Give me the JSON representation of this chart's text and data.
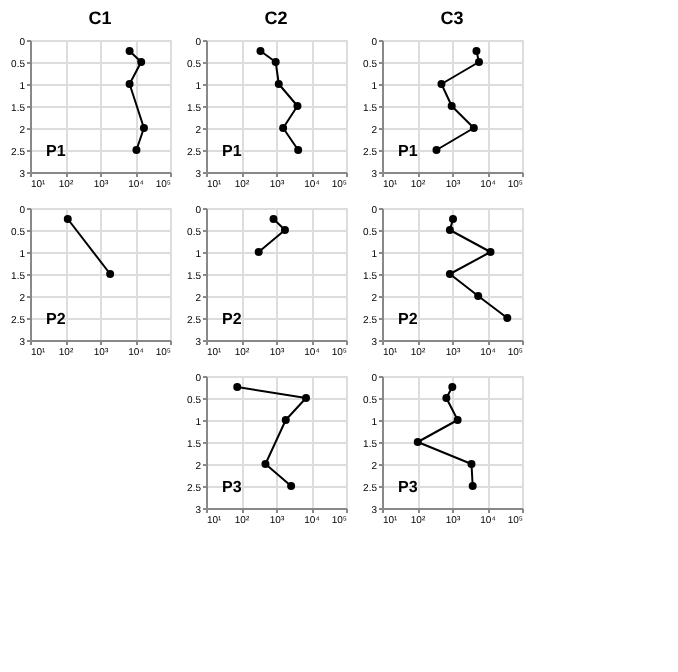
{
  "chart_data": [
    {
      "type": "line",
      "title": "C1",
      "annotations": [
        "P1"
      ],
      "series": [
        {
          "color": "#000000",
          "x": [
            7000,
            15000,
            7000,
            18000,
            11000
          ],
          "values": [
            0.25,
            0.5,
            1,
            2,
            2.5
          ]
        }
      ],
      "xlim": [
        10,
        100000
      ],
      "xticks": [
        {
          "value": 10,
          "label": "10¹"
        },
        {
          "value": 100,
          "label": "10²"
        },
        {
          "value": 1000,
          "label": "10³"
        },
        {
          "value": 10000,
          "label": "10⁴"
        },
        {
          "value": 100000,
          "label": "10⁵"
        }
      ],
      "ylim": [
        3,
        0
      ],
      "yticks": [
        0,
        0.5,
        1,
        1.5,
        2,
        2.5,
        3
      ],
      "log": "x",
      "grid": true,
      "marker": "circle"
    },
    {
      "type": "line",
      "title": "C2",
      "annotations": [
        "P1"
      ],
      "series": [
        {
          "color": "#000000",
          "x": [
            360,
            980,
            1200,
            4100,
            1600,
            4300
          ],
          "values": [
            0.25,
            0.5,
            1,
            1.5,
            2,
            2.5
          ]
        }
      ],
      "xlim": [
        10,
        100000
      ],
      "xticks": [
        {
          "value": 10,
          "label": "10¹"
        },
        {
          "value": 100,
          "label": "10²"
        },
        {
          "value": 1000,
          "label": "10³"
        },
        {
          "value": 10000,
          "label": "10⁴"
        },
        {
          "value": 100000,
          "label": "10⁵"
        }
      ],
      "ylim": [
        3,
        0
      ],
      "yticks": [
        0,
        0.5,
        1,
        1.5,
        2,
        2.5,
        3
      ],
      "log": "x",
      "grid": true,
      "marker": "circle"
    },
    {
      "type": "line",
      "title": "C3",
      "annotations": [
        "P1"
      ],
      "series": [
        {
          "color": "#000000",
          "x": [
            5000,
            5900,
            500,
            980,
            4200,
            360
          ],
          "values": [
            0.25,
            0.5,
            1,
            1.5,
            2,
            2.5
          ]
        }
      ],
      "xlim": [
        10,
        100000
      ],
      "xticks": [
        {
          "value": 10,
          "label": "10¹"
        },
        {
          "value": 100,
          "label": "10²"
        },
        {
          "value": 1000,
          "label": "10³"
        },
        {
          "value": 10000,
          "label": "10⁴"
        },
        {
          "value": 100000,
          "label": "10⁵"
        }
      ],
      "ylim": [
        3,
        0
      ],
      "yticks": [
        0,
        0.5,
        1,
        1.5,
        2,
        2.5,
        3
      ],
      "log": "x",
      "grid": true,
      "marker": "circle"
    },
    {
      "type": "line",
      "annotations": [
        "P2"
      ],
      "series": [
        {
          "color": "#000000",
          "x": [
            120,
            1950
          ],
          "values": [
            0.25,
            1.5
          ]
        }
      ],
      "xlim": [
        10,
        100000
      ],
      "xticks": [
        {
          "value": 10,
          "label": "10¹"
        },
        {
          "value": 100,
          "label": "10²"
        },
        {
          "value": 1000,
          "label": "10³"
        },
        {
          "value": 10000,
          "label": "10⁴"
        },
        {
          "value": 100000,
          "label": "10⁵"
        }
      ],
      "ylim": [
        3,
        0
      ],
      "yticks": [
        0,
        0.5,
        1,
        1.5,
        2,
        2.5,
        3
      ],
      "log": "x",
      "grid": true,
      "marker": "circle"
    },
    {
      "type": "line",
      "annotations": [
        "P2"
      ],
      "series": [
        {
          "color": "#000000",
          "x": [
            850,
            1800,
            320
          ],
          "values": [
            0.25,
            0.5,
            1
          ]
        }
      ],
      "xlim": [
        10,
        100000
      ],
      "xticks": [
        {
          "value": 10,
          "label": "10¹"
        },
        {
          "value": 100,
          "label": "10²"
        },
        {
          "value": 1000,
          "label": "10³"
        },
        {
          "value": 10000,
          "label": "10⁴"
        },
        {
          "value": 100000,
          "label": "10⁵"
        }
      ],
      "ylim": [
        3,
        0
      ],
      "yticks": [
        0,
        0.5,
        1,
        1.5,
        2,
        2.5,
        3
      ],
      "log": "x",
      "grid": true,
      "marker": "circle"
    },
    {
      "type": "line",
      "annotations": [
        "P2"
      ],
      "series": [
        {
          "color": "#000000",
          "x": [
            1070,
            870,
            12600,
            870,
            5600,
            38000
          ],
          "values": [
            0.25,
            0.5,
            1,
            1.5,
            2,
            2.5
          ]
        }
      ],
      "xlim": [
        10,
        100000
      ],
      "xticks": [
        {
          "value": 10,
          "label": "10¹"
        },
        {
          "value": 100,
          "label": "10²"
        },
        {
          "value": 1000,
          "label": "10³"
        },
        {
          "value": 10000,
          "label": "10⁴"
        },
        {
          "value": 100000,
          "label": "10⁵"
        }
      ],
      "ylim": [
        3,
        0
      ],
      "yticks": [
        0,
        0.5,
        1,
        1.5,
        2,
        2.5,
        3
      ],
      "log": "x",
      "grid": true,
      "marker": "circle"
    },
    {
      "type": "line",
      "annotations": [
        "P3"
      ],
      "series": [
        {
          "color": "#000000",
          "x": [
            78,
            7200,
            1900,
            500,
            2700
          ],
          "values": [
            0.25,
            0.5,
            1,
            2,
            2.5
          ]
        }
      ],
      "xlim": [
        10,
        100000
      ],
      "xticks": [
        {
          "value": 10,
          "label": "10¹"
        },
        {
          "value": 100,
          "label": "10²"
        },
        {
          "value": 1000,
          "label": "10³"
        },
        {
          "value": 10000,
          "label": "10⁴"
        },
        {
          "value": 100000,
          "label": "10⁵"
        }
      ],
      "ylim": [
        3,
        0
      ],
      "yticks": [
        0,
        0.5,
        1,
        1.5,
        2,
        2.5,
        3
      ],
      "log": "x",
      "grid": true,
      "marker": "circle"
    },
    {
      "type": "line",
      "annotations": [
        "P3"
      ],
      "series": [
        {
          "color": "#000000",
          "x": [
            1020,
            690,
            1450,
            105,
            3600,
            3900
          ],
          "values": [
            0.25,
            0.5,
            1,
            1.5,
            2,
            2.5
          ]
        }
      ],
      "xlim": [
        10,
        100000
      ],
      "xticks": [
        {
          "value": 10,
          "label": "10¹"
        },
        {
          "value": 100,
          "label": "10²"
        },
        {
          "value": 1000,
          "label": "10³"
        },
        {
          "value": 10000,
          "label": "10⁴"
        },
        {
          "value": 100000,
          "label": "10⁵"
        }
      ],
      "ylim": [
        3,
        0
      ],
      "yticks": [
        0,
        0.5,
        1,
        1.5,
        2,
        2.5,
        3
      ],
      "log": "x",
      "grid": true,
      "marker": "circle"
    }
  ]
}
